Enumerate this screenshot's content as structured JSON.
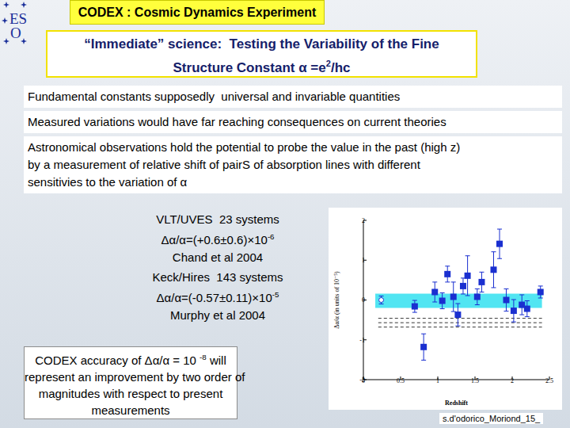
{
  "header": {
    "logo": [
      "ES",
      "O"
    ],
    "title": "CODEX : Cosmic Dynamics Experiment"
  },
  "subtitle": [
    [
      {
        "t": "“Immediate” science:  Testing the Variability of the Fine"
      }
    ],
    [
      {
        "t": "Structure Constant α =e"
      },
      {
        "t": "2",
        "sup": true
      },
      {
        "t": "/hc"
      }
    ]
  ],
  "bullets": [
    [
      "Fundamental constants supposedly  universal and invariable quantities"
    ],
    [
      "Measured variations would have far reaching consequences on current theories"
    ],
    [
      "Astronomical observations hold the potential to probe the value in the past (high z)",
      "by a measurement of relative shift of pairS of absorption lines with different",
      "sensitivies to the variation of α"
    ]
  ],
  "results": [
    [
      [
        {
          "t": "VLT/UVES  23 systems"
        }
      ],
      [
        {
          "t": "Δα/α=(+0.6±0.6)×10"
        },
        {
          "t": "-6",
          "sup": true
        }
      ],
      [
        {
          "t": "Chand et al 2004"
        }
      ]
    ],
    [
      [
        {
          "t": "Keck/Hires  143 systems"
        }
      ],
      [
        {
          "t": "Δα/α=(-0.57±0.11)×10"
        },
        {
          "t": "-5",
          "sup": true
        }
      ],
      [
        {
          "t": "Murphy et al 2004"
        }
      ]
    ]
  ],
  "note": [
    [
      {
        "t": "CODEX accuracy of Δα/α = 10 "
      },
      {
        "t": "-8",
        "sup": true
      },
      {
        "t": " will"
      }
    ],
    [
      {
        "t": "represent an improvement by two order of"
      }
    ],
    [
      {
        "t": "magnitudes with respect to present"
      }
    ],
    [
      {
        "t": "measurements"
      }
    ]
  ],
  "footer": "s.d'odorico_Moriond_15_",
  "chart_data": {
    "type": "scatter",
    "x_label": "Redshift",
    "y_label": "Δα/α (in units of 10⁻⁵)",
    "xlim": [
      0,
      2.5
    ],
    "xticks": [
      0,
      0.5,
      1,
      1.5,
      2,
      2.5
    ],
    "ylim": [
      -2,
      2
    ],
    "yticks": [
      -2,
      -1,
      0,
      1,
      2
    ],
    "series": [
      {
        "marker": "square",
        "color": "#1a2fd0",
        "x": [
          0.69,
          0.81,
          0.96,
          1.06,
          1.13,
          1.21,
          1.27,
          1.34,
          1.4,
          1.53,
          1.59,
          1.75,
          1.83,
          1.92,
          2.02,
          2.13,
          2.2,
          2.38
        ],
        "values": [
          -0.16,
          -1.18,
          0.2,
          -0.02,
          0.65,
          0.08,
          -0.37,
          0.35,
          0.61,
          0.08,
          0.45,
          0.76,
          1.41,
          0.0,
          -0.27,
          -0.12,
          -0.22,
          0.2
        ],
        "errors": [
          0.15,
          0.33,
          0.25,
          0.2,
          0.2,
          0.37,
          0.28,
          0.2,
          0.5,
          0.2,
          0.25,
          0.45,
          0.37,
          0.28,
          0.28,
          0.25,
          0.2,
          0.15
        ]
      },
      {
        "marker": "circle",
        "color": "#1a2fd0",
        "x": [
          0.24
        ],
        "values": [
          0.0
        ],
        "errors": [
          0.1
        ]
      }
    ],
    "bands": [
      {
        "low": -0.2,
        "high": 0.16,
        "x": [
          0.16,
          2.4
        ],
        "color": "#33e0f0"
      }
    ],
    "lines": [
      {
        "value": -0.46,
        "x": [
          0.2,
          2.4
        ],
        "line_style": "dashed",
        "color": "#000000"
      },
      {
        "value": -0.57,
        "x": [
          0.2,
          2.4
        ],
        "line_style": "dashed",
        "color": "#000000"
      },
      {
        "value": -0.68,
        "x": [
          0.2,
          2.4
        ],
        "line_style": "dashed",
        "color": "#000000"
      }
    ]
  }
}
